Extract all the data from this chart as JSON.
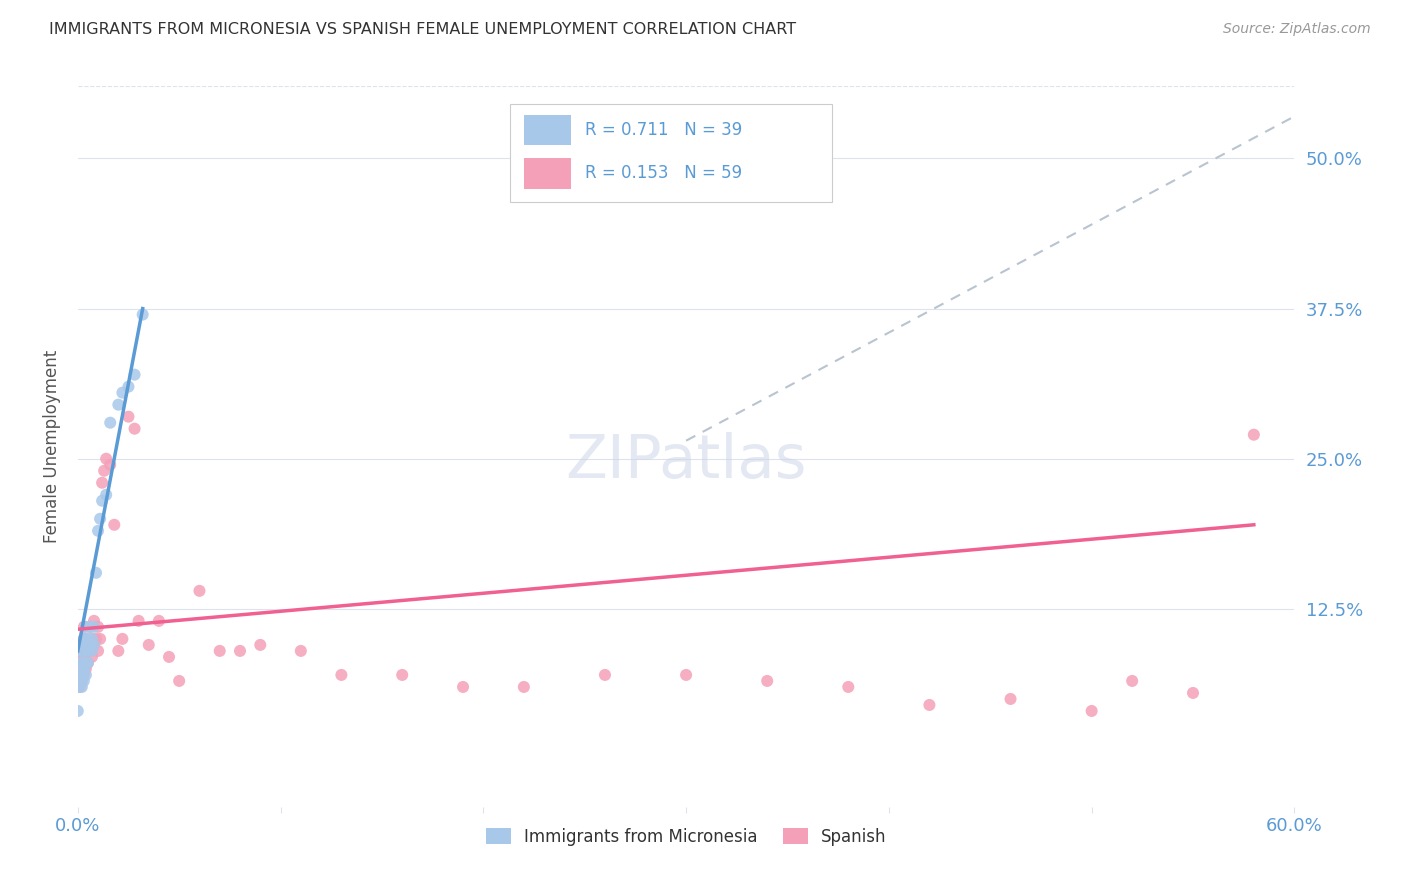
{
  "title": "IMMIGRANTS FROM MICRONESIA VS SPANISH FEMALE UNEMPLOYMENT CORRELATION CHART",
  "source": "Source: ZipAtlas.com",
  "ylabel": "Female Unemployment",
  "right_yticks": [
    "50.0%",
    "37.5%",
    "25.0%",
    "12.5%"
  ],
  "right_ytick_vals": [
    0.5,
    0.375,
    0.25,
    0.125
  ],
  "xlim": [
    0.0,
    0.6
  ],
  "ylim": [
    -0.04,
    0.56
  ],
  "blue_R": 0.711,
  "blue_N": 39,
  "pink_R": 0.153,
  "pink_N": 59,
  "blue_color": "#a8c8ea",
  "pink_color": "#f4a0b8",
  "blue_line_color": "#5b9bd5",
  "pink_line_color": "#f06090",
  "dashed_line_color": "#b8c4d0",
  "grid_color": "#dde3ec",
  "blue_scatter_x": [
    0.0,
    0.0,
    0.001,
    0.001,
    0.001,
    0.001,
    0.002,
    0.002,
    0.002,
    0.002,
    0.002,
    0.003,
    0.003,
    0.003,
    0.003,
    0.004,
    0.004,
    0.004,
    0.004,
    0.005,
    0.005,
    0.005,
    0.006,
    0.006,
    0.007,
    0.007,
    0.008,
    0.008,
    0.009,
    0.01,
    0.011,
    0.012,
    0.014,
    0.016,
    0.02,
    0.022,
    0.025,
    0.028,
    0.032
  ],
  "blue_scatter_y": [
    0.06,
    0.04,
    0.065,
    0.07,
    0.075,
    0.08,
    0.06,
    0.07,
    0.075,
    0.08,
    0.09,
    0.065,
    0.075,
    0.09,
    0.1,
    0.07,
    0.08,
    0.095,
    0.11,
    0.08,
    0.09,
    0.1,
    0.095,
    0.11,
    0.09,
    0.1,
    0.095,
    0.11,
    0.155,
    0.19,
    0.2,
    0.215,
    0.22,
    0.28,
    0.295,
    0.305,
    0.31,
    0.32,
    0.37
  ],
  "pink_scatter_x": [
    0.0,
    0.001,
    0.001,
    0.001,
    0.002,
    0.002,
    0.002,
    0.003,
    0.003,
    0.003,
    0.003,
    0.004,
    0.004,
    0.004,
    0.005,
    0.005,
    0.006,
    0.006,
    0.007,
    0.007,
    0.008,
    0.008,
    0.009,
    0.01,
    0.01,
    0.011,
    0.012,
    0.013,
    0.014,
    0.016,
    0.018,
    0.02,
    0.022,
    0.025,
    0.028,
    0.03,
    0.035,
    0.04,
    0.045,
    0.05,
    0.06,
    0.07,
    0.08,
    0.09,
    0.11,
    0.13,
    0.16,
    0.19,
    0.22,
    0.26,
    0.3,
    0.34,
    0.38,
    0.42,
    0.46,
    0.5,
    0.52,
    0.55,
    0.58
  ],
  "pink_scatter_y": [
    0.08,
    0.06,
    0.075,
    0.09,
    0.065,
    0.08,
    0.095,
    0.07,
    0.085,
    0.1,
    0.11,
    0.075,
    0.09,
    0.1,
    0.08,
    0.095,
    0.09,
    0.11,
    0.085,
    0.1,
    0.095,
    0.115,
    0.1,
    0.09,
    0.11,
    0.1,
    0.23,
    0.24,
    0.25,
    0.245,
    0.195,
    0.09,
    0.1,
    0.285,
    0.275,
    0.115,
    0.095,
    0.115,
    0.085,
    0.065,
    0.14,
    0.09,
    0.09,
    0.095,
    0.09,
    0.07,
    0.07,
    0.06,
    0.06,
    0.07,
    0.07,
    0.065,
    0.06,
    0.045,
    0.05,
    0.04,
    0.065,
    0.055,
    0.27
  ],
  "legend_label_blue": "Immigrants from Micronesia",
  "legend_label_pink": "Spanish",
  "background_color": "#ffffff",
  "plot_bg_color": "#ffffff"
}
